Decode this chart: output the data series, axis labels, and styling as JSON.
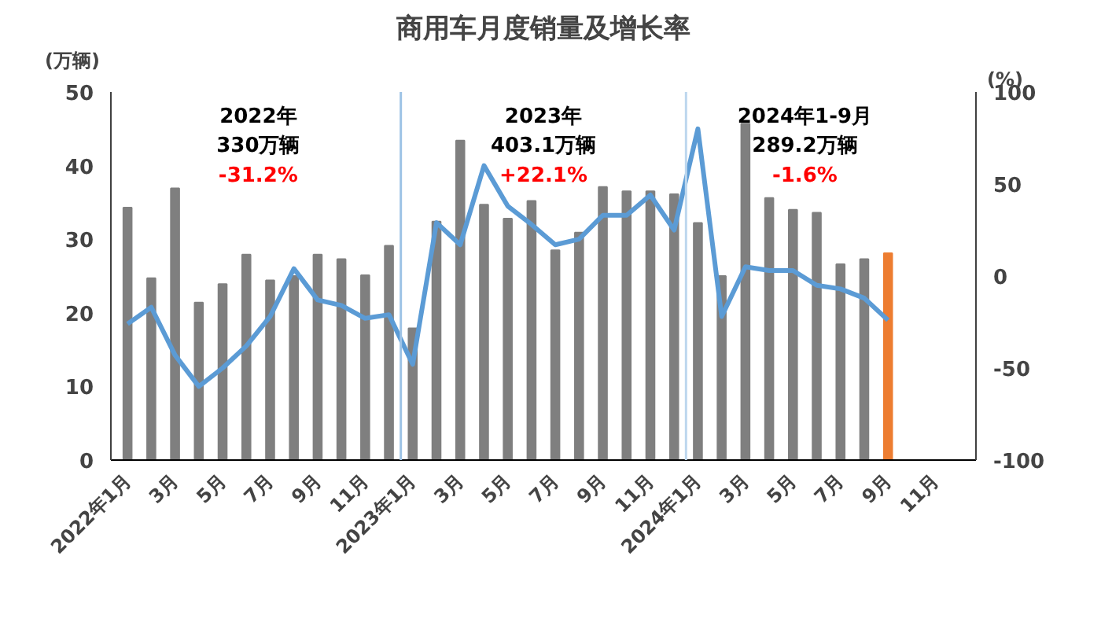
{
  "chart_data": {
    "type": "bar",
    "title": "商用车月度销量及增长率",
    "ylabel": "(万辆)",
    "y2label": "(%)",
    "categories": [
      "2022年1月",
      null,
      "3月",
      null,
      "5月",
      null,
      "7月",
      null,
      "9月",
      null,
      "11月",
      null,
      "2023年1月",
      null,
      "3月",
      null,
      "5月",
      null,
      "7月",
      null,
      "9月",
      null,
      "11月",
      null,
      "2024年1月",
      null,
      "3月",
      null,
      "5月",
      null,
      "7月",
      null,
      "9月",
      null,
      "11月",
      null
    ],
    "series": [
      {
        "color": "#7f7f7f",
        "colors": [
          null,
          null,
          null,
          null,
          null,
          null,
          null,
          null,
          null,
          null,
          null,
          null,
          null,
          null,
          null,
          null,
          null,
          null,
          null,
          null,
          null,
          null,
          null,
          null,
          null,
          null,
          null,
          null,
          null,
          null,
          null,
          null,
          "#ed7d31",
          null,
          null,
          null
        ],
        "values": [
          34.3,
          24.7,
          36.9,
          21.4,
          23.9,
          27.9,
          24.4,
          25,
          27.9,
          27.3,
          25.1,
          29.1,
          17.9,
          32.4,
          43.4,
          34.7,
          32.8,
          35.2,
          28.5,
          30.9,
          37.1,
          36.5,
          36.5,
          36.1,
          32.2,
          25.0,
          45.7,
          35.6,
          34.0,
          33.6,
          26.6,
          27.3,
          28.1,
          null,
          null,
          null
        ]
      },
      {
        "type": "line",
        "axis": "y2",
        "color": "#5b9bd5",
        "values": [
          -26,
          -17,
          -43,
          -60,
          -50,
          -38,
          -22,
          4,
          -13,
          -16,
          -23,
          -21,
          -48,
          29,
          17,
          60,
          38,
          28,
          17,
          20,
          33,
          33,
          44,
          25,
          80,
          -22,
          5,
          3,
          3,
          -5,
          -7,
          -12,
          -24,
          null,
          null,
          null
        ]
      }
    ],
    "ylim": [
      0,
      50
    ],
    "yticks": [
      0,
      10,
      20,
      30,
      40,
      50
    ],
    "y2lim": [
      -100,
      100
    ],
    "y2ticks": [
      -100,
      -50,
      0,
      50,
      100
    ],
    "ref_lines": [
      {
        "axis": "x",
        "value": "2023年1月",
        "color": "#9dc3e6"
      },
      {
        "axis": "x",
        "value": "2024年1月",
        "color": "#bdd7ee"
      }
    ],
    "annotations": [
      "2022年",
      "330万辆",
      "-31.2%",
      "2023年",
      "403.1万辆",
      "+22.1%",
      "2024年1-9月",
      "289.2万辆",
      "-1.6%"
    ],
    "grid": false
  }
}
